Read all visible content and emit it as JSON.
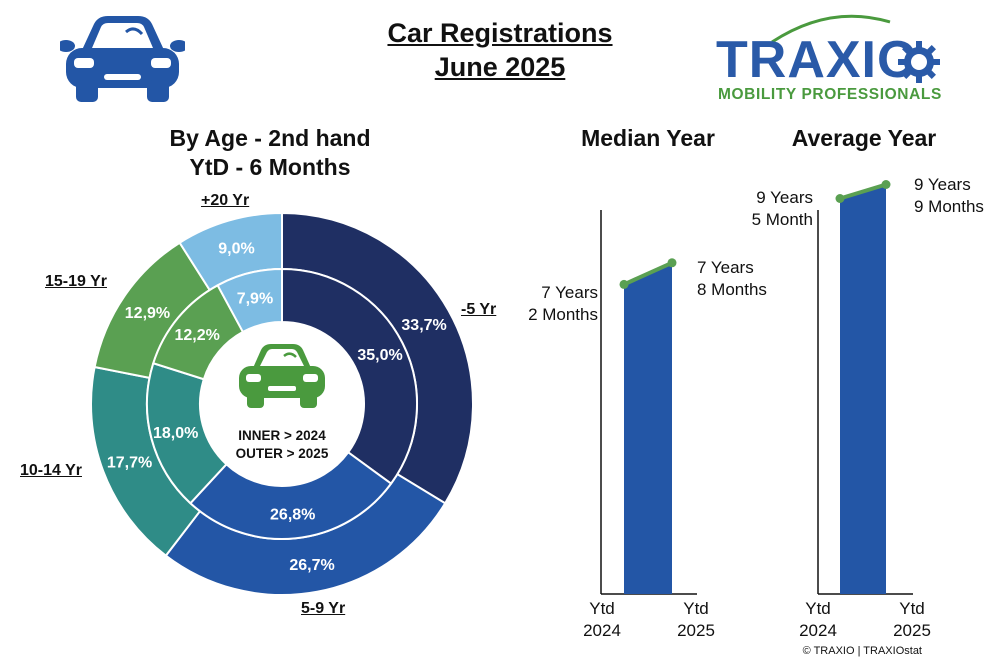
{
  "header": {
    "title_line1": "Car Registrations",
    "title_line2": "June 2025"
  },
  "logo": {
    "name": "TRAXIO",
    "tagline": "MOBILITY PROFESSIONALS",
    "colors": {
      "wordmark": "#2a5aa8",
      "tagline": "#4a9a3e",
      "swoosh": "#4a9a3e"
    }
  },
  "icons": {
    "top_left": "car-icon",
    "donut_center": "car-icon",
    "logo_gear": "gear-icon"
  },
  "copyright": "© TRAXIO | TRAXIOstat",
  "chart_data": [
    {
      "type": "donut",
      "title_line1": "By Age - 2nd hand",
      "title_line2": "YtD - 6 Months",
      "center_text_line1": "INNER > 2024",
      "center_text_line2": "OUTER > 2025",
      "categories": [
        "-5 Yr",
        "5-9 Yr",
        "10-14 Yr",
        "15-19 Yr",
        "+20 Yr"
      ],
      "series": [
        {
          "ring": "inner",
          "values": [
            35.0,
            26.8,
            18.0,
            12.2,
            7.9
          ],
          "labels": [
            "35,0%",
            "26,8%",
            "18,0%",
            "12,2%",
            "7,9%"
          ]
        },
        {
          "ring": "outer",
          "values": [
            33.7,
            26.7,
            17.7,
            12.9,
            9.0
          ],
          "labels": [
            "33,7%",
            "26,7%",
            "17,7%",
            "12,9%",
            "9,0%"
          ]
        }
      ],
      "colors": [
        "#1f2f63",
        "#2356a6",
        "#2f8c87",
        "#5aa052",
        "#7dbce3"
      ],
      "label_colors": [
        "#1f2f63",
        "#2356a6",
        "#2f8c87",
        "#5aa052",
        "#7dbce3"
      ]
    },
    {
      "type": "bar",
      "title": "Median Year",
      "categories": [
        "Ytd 2024",
        "Ytd 2025"
      ],
      "category_lines": [
        [
          "Ytd",
          "2024"
        ],
        [
          "Ytd",
          "2025"
        ]
      ],
      "values_months": [
        86,
        92
      ],
      "value_labels": [
        [
          "7 Years",
          "2 Months"
        ],
        [
          "7 Years",
          "8 Months"
        ]
      ],
      "ylim_months": [
        0,
        100
      ],
      "bar_color": "#2356a6",
      "line_color": "#5aa052"
    },
    {
      "type": "bar",
      "title": "Average Year",
      "categories": [
        "Ytd 2024",
        "Ytd 2025"
      ],
      "category_lines": [
        [
          "Ytd",
          "2024"
        ],
        [
          "Ytd",
          "2025"
        ]
      ],
      "values_months": [
        113,
        117
      ],
      "value_labels": [
        [
          "9 Years",
          "5 Month"
        ],
        [
          "9 Years",
          "9 Months"
        ]
      ],
      "ylim_months": [
        0,
        120
      ],
      "bar_color": "#2356a6",
      "line_color": "#5aa052"
    }
  ]
}
